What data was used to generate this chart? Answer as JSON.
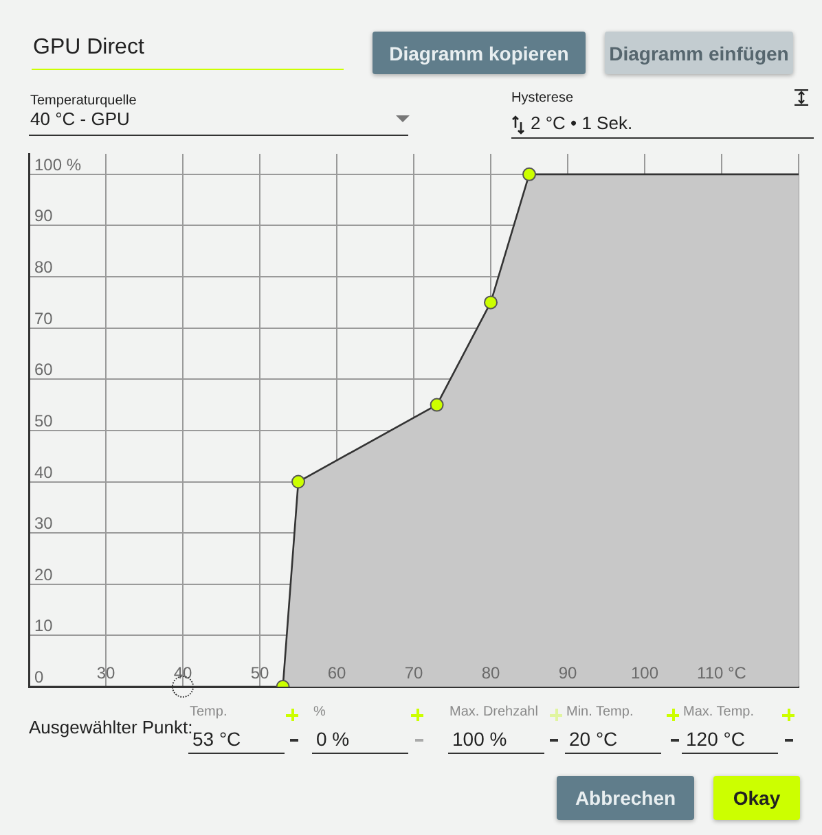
{
  "chart_data": {
    "type": "area",
    "title": "GPU Direct",
    "xlim": [
      20,
      120
    ],
    "ylim": [
      0,
      104
    ],
    "xticks": [
      30,
      40,
      50,
      60,
      70,
      80,
      90,
      100,
      {
        "value": 110,
        "label": "110 °C"
      },
      {
        "value": 120,
        "label": null
      }
    ],
    "yticks": [
      0,
      10,
      20,
      30,
      40,
      50,
      60,
      70,
      80,
      90,
      {
        "value": 100,
        "label": "100 %"
      }
    ],
    "grid": true,
    "series": [
      {
        "color": "#c8c8c8",
        "x": [
          20,
          53,
          55,
          73,
          80,
          85,
          120
        ],
        "values": [
          0,
          0,
          40,
          55,
          75,
          100,
          100
        ]
      },
      {
        "type": "scatter",
        "color": "#ccff00",
        "marker": "circle",
        "x": [
          53,
          55,
          73,
          80,
          85
        ],
        "values": [
          0,
          40,
          55,
          75,
          100
        ]
      }
    ],
    "annotations": [
      "Diagramm kopieren",
      "Diagramm einfügen",
      "Temperaturquelle",
      "40 °C - GPU",
      "Hysterese",
      "2 °C • 1 Sek.",
      "Ausgewählter Punkt:",
      "Temp.",
      "53 °C",
      "%",
      "0 %",
      "Max. Drehzahl",
      "100 %",
      "Min. Temp.",
      "20 °C",
      "Max. Temp.",
      "120 °C",
      "Abbrechen",
      "Okay"
    ]
  }
}
